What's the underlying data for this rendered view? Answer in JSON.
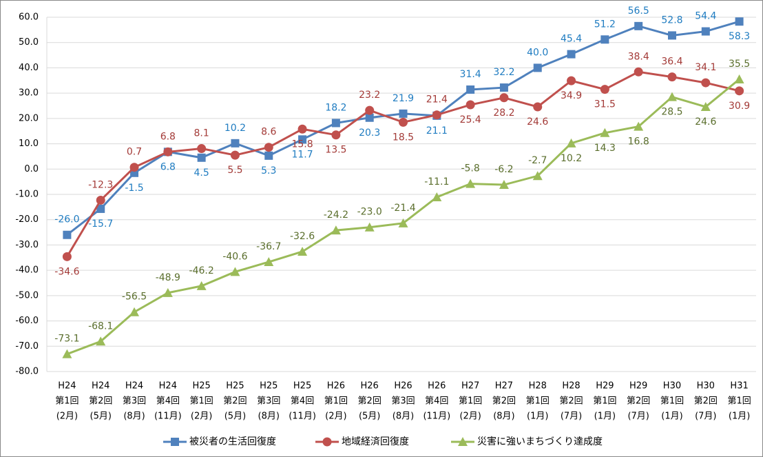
{
  "chart_data": {
    "type": "line",
    "categories": [
      [
        "H24",
        "第1回",
        "(2月)"
      ],
      [
        "H24",
        "第2回",
        "(5月)"
      ],
      [
        "H24",
        "第3回",
        "(8月)"
      ],
      [
        "H24",
        "第4回",
        "(11月)"
      ],
      [
        "H25",
        "第1回",
        "(2月)"
      ],
      [
        "H25",
        "第2回",
        "(5月)"
      ],
      [
        "H25",
        "第3回",
        "(8月)"
      ],
      [
        "H25",
        "第4回",
        "(11月)"
      ],
      [
        "H26",
        "第1回",
        "(2月)"
      ],
      [
        "H26",
        "第2回",
        "(5月)"
      ],
      [
        "H26",
        "第3回",
        "(8月)"
      ],
      [
        "H26",
        "第4回",
        "(11月)"
      ],
      [
        "H27",
        "第1回",
        "(2月)"
      ],
      [
        "H27",
        "第2回",
        "(8月)"
      ],
      [
        "H28",
        "第1回",
        "(1月)"
      ],
      [
        "H28",
        "第2回",
        "(7月)"
      ],
      [
        "H29",
        "第1回",
        "(1月)"
      ],
      [
        "H29",
        "第2回",
        "(7月)"
      ],
      [
        "H30",
        "第1回",
        "(1月)"
      ],
      [
        "H30",
        "第2回",
        "(7月)"
      ],
      [
        "H31",
        "第1回",
        "(1月)"
      ]
    ],
    "series": [
      {
        "name": "被災者の生活回復度",
        "color": "#4f81bd",
        "label_color": "#1f7cc1",
        "marker": "square",
        "values": [
          -26.0,
          -15.7,
          -1.5,
          6.8,
          4.5,
          10.2,
          5.3,
          11.7,
          18.2,
          20.3,
          21.9,
          21.1,
          31.4,
          32.2,
          40.0,
          45.4,
          51.2,
          56.5,
          52.8,
          54.4,
          58.3
        ],
        "value_labels": [
          "-26.0",
          "-15.7",
          "-1.5",
          "6.8",
          "4.5",
          "10.2",
          "5.3",
          "11.7",
          "18.2",
          "20.3",
          "21.9",
          "21.1",
          "31.4",
          "32.2",
          "40.0",
          "45.4",
          "51.2",
          "56.5",
          "52.8",
          "54.4",
          "58.3"
        ]
      },
      {
        "name": "地域経済回復度",
        "color": "#c0504d",
        "label_color": "#a33a37",
        "marker": "circle",
        "values": [
          -34.6,
          -12.3,
          0.7,
          6.8,
          8.1,
          5.5,
          8.6,
          15.8,
          13.5,
          23.2,
          18.5,
          21.4,
          25.4,
          28.2,
          24.6,
          34.9,
          31.5,
          38.4,
          36.4,
          34.1,
          30.9
        ],
        "value_labels": [
          "-34.6",
          "-12.3",
          "0.7",
          "6.8",
          "8.1",
          "5.5",
          "8.6",
          "15.8",
          "13.5",
          "23.2",
          "18.5",
          "21.4",
          "25.4",
          "28.2",
          "24.6",
          "34.9",
          "31.5",
          "38.4",
          "36.4",
          "34.1",
          "30.9"
        ]
      },
      {
        "name": "災害に強いまちづくり達成度",
        "color": "#9bbb59",
        "label_color": "#5a6e2c",
        "marker": "triangle",
        "values": [
          -73.1,
          -68.1,
          -56.5,
          -48.9,
          -46.2,
          -40.6,
          -36.7,
          -32.6,
          -24.2,
          -23.0,
          -21.4,
          -11.1,
          -5.8,
          -6.2,
          -2.7,
          10.2,
          14.3,
          16.8,
          28.5,
          24.6,
          35.5
        ],
        "value_labels": [
          "-73.1",
          "-68.1",
          "-56.5",
          "-48.9",
          "-46.2",
          "-40.6",
          "-36.7",
          "-32.6",
          "-24.2",
          "-23.0",
          "-21.4",
          "-11.1",
          "-5.8",
          "-6.2",
          "-2.7",
          "10.2",
          "14.3",
          "16.8",
          "28.5",
          "24.6",
          "35.5"
        ]
      }
    ],
    "ylim": [
      -80,
      60
    ],
    "yticks": [
      {
        "value": -80,
        "label": "-80.0"
      },
      {
        "value": -70,
        "label": "-70.0"
      },
      {
        "value": -60,
        "label": "-60.0"
      },
      {
        "value": -50,
        "label": "-50.0"
      },
      {
        "value": -40,
        "label": "-40.0"
      },
      {
        "value": -30,
        "label": "-30.0"
      },
      {
        "value": -20,
        "label": "-20.0"
      },
      {
        "value": -10,
        "label": "-10.0"
      },
      {
        "value": 0,
        "label": "0.0"
      },
      {
        "value": 10,
        "label": "10.0"
      },
      {
        "value": 20,
        "label": "20.0"
      },
      {
        "value": 30,
        "label": "30.0"
      },
      {
        "value": 40,
        "label": "40.0"
      },
      {
        "value": 50,
        "label": "50.0"
      },
      {
        "value": 60,
        "label": "60.0"
      }
    ],
    "grid": true,
    "legend": "bottom"
  }
}
